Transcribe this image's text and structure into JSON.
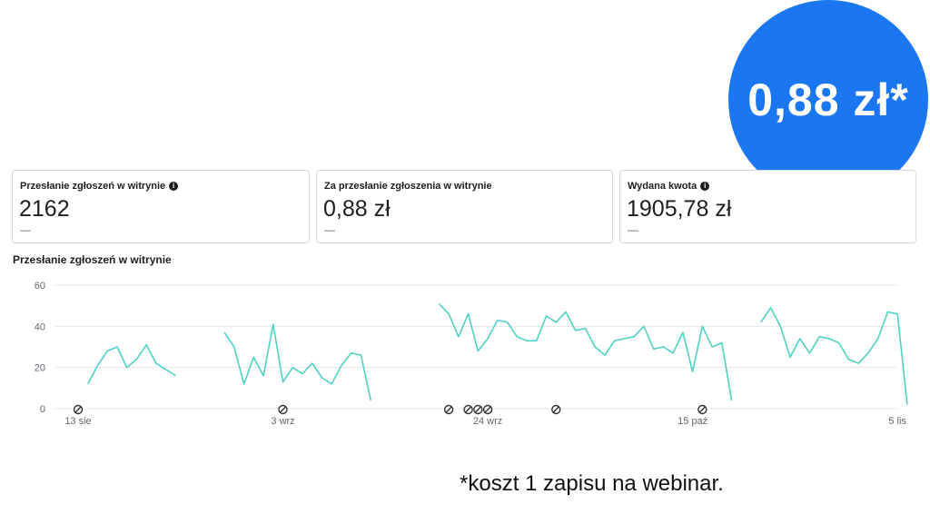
{
  "badge": {
    "text": "0,88 zł*"
  },
  "cards": [
    {
      "label": "Przesłanie zgłoszeń w witrynie",
      "value": "2162",
      "delta": "—",
      "info": true
    },
    {
      "label": "Za przesłanie zgłoszenia w witrynie",
      "value": "0,88 zł",
      "delta": "—",
      "info": false
    },
    {
      "label": "Wydana kwota",
      "value": "1905,78 zł",
      "delta": "—",
      "info": true
    }
  ],
  "footnote": "*koszt 1 zapisu na webinar.",
  "chart_data": {
    "type": "line",
    "title": "Przesłanie zgłoszeń w witrynie",
    "ylim": [
      0,
      60
    ],
    "yticks": [
      0,
      20,
      40,
      60
    ],
    "grid": true,
    "colors": {
      "line": "#4fd1c5",
      "grid": "#e4e6eb"
    },
    "x_tick_labels": [
      {
        "label": "13 sie",
        "day": 0
      },
      {
        "label": "3 wrz",
        "day": 21
      },
      {
        "label": "24 wrz",
        "day": 42
      },
      {
        "label": "15 paź",
        "day": 63
      },
      {
        "label": "5 lis",
        "day": 84
      }
    ],
    "annotation_icon": "edit-marker-icon",
    "annotation_days": [
      0,
      21,
      38,
      40,
      41,
      42,
      49,
      64
    ],
    "series": [
      {
        "segments": [
          {
            "start": 1,
            "values": [
              12,
              21,
              28,
              30,
              20,
              24,
              31,
              22,
              19,
              16
            ]
          },
          {
            "start": 15,
            "values": [
              37,
              30,
              12,
              25,
              16,
              41,
              13,
              20,
              17,
              22,
              15,
              12,
              21,
              27,
              26,
              4
            ]
          },
          {
            "start": 37,
            "values": [
              51,
              46,
              35,
              46,
              28,
              34,
              43,
              42,
              35,
              33,
              33,
              45,
              42,
              47,
              38,
              39,
              30,
              26,
              33,
              34,
              35,
              40,
              29,
              30,
              27,
              37,
              18,
              40,
              30,
              32,
              4
            ]
          },
          {
            "start": 70,
            "values": [
              42,
              49,
              40,
              25,
              34,
              27,
              35,
              34,
              32,
              24,
              22,
              27,
              34,
              47,
              46,
              2
            ]
          }
        ]
      }
    ]
  }
}
